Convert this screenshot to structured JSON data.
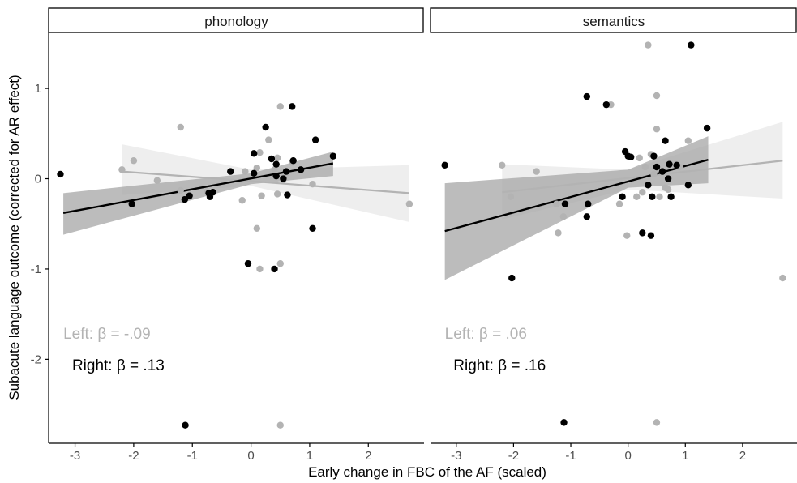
{
  "chart_data": {
    "type": "scatter",
    "xlabel": "Early change in FBC of the AF (scaled)",
    "ylabel": "Subacute language outcome (corrected for AR effect)",
    "xlim": [
      -3.45,
      2.95
    ],
    "ylim": [
      -2.93,
      1.62
    ],
    "x_ticks": [
      "-3",
      "-2",
      "-1",
      "0",
      "1",
      "2"
    ],
    "x_tick_values": [
      -3,
      -2,
      -1,
      0,
      1,
      2
    ],
    "y_ticks": [
      "-2",
      "-1",
      "0",
      "1"
    ],
    "y_tick_values": [
      -2,
      -1,
      0,
      1
    ],
    "grid": false,
    "colors": {
      "Left": "#b3b3b3",
      "Right": "#000000",
      "band_left": "#ebebeb",
      "band_right": "#a6a6a6"
    },
    "panels": [
      {
        "strip": "phonology",
        "annotations": {
          "left": "Left: β = -.09",
          "right": "Right: β = .13"
        },
        "series": [
          {
            "group": "Left",
            "fit": {
              "x": [
                -2.2,
                2.7
              ],
              "y": [
                0.08,
                -0.16
              ]
            },
            "band": {
              "x": [
                -2.2,
                0.0,
                2.7
              ],
              "lower": [
                -0.18,
                -0.08,
                -0.48
              ],
              "upper": [
                0.38,
                0.1,
                0.15
              ]
            },
            "points": [
              [
                -2.2,
                0.1
              ],
              [
                -2.0,
                0.2
              ],
              [
                -1.6,
                -0.02
              ],
              [
                -1.2,
                0.57
              ],
              [
                -1.2,
                -0.13
              ],
              [
                -1.05,
                -0.2
              ],
              [
                -0.75,
                -0.14
              ],
              [
                -0.15,
                -0.24
              ],
              [
                -0.1,
                0.08
              ],
              [
                0.1,
                -0.55
              ],
              [
                0.1,
                0.12
              ],
              [
                0.15,
                -1.0
              ],
              [
                0.15,
                0.29
              ],
              [
                0.18,
                -0.19
              ],
              [
                0.3,
                0.43
              ],
              [
                0.4,
                0.1
              ],
              [
                0.45,
                0.23
              ],
              [
                0.45,
                -0.17
              ],
              [
                0.5,
                0.8
              ],
              [
                0.5,
                -0.94
              ],
              [
                0.5,
                -2.73
              ],
              [
                0.55,
                -0.01
              ],
              [
                0.6,
                0.06
              ],
              [
                0.7,
                0.18
              ],
              [
                1.05,
                -0.06
              ],
              [
                2.7,
                -0.28
              ]
            ]
          },
          {
            "group": "Right",
            "fit": {
              "x": [
                -3.2,
                1.4
              ],
              "y": [
                -0.38,
                0.17
              ]
            },
            "band": {
              "x": [
                -3.2,
                0.0,
                1.4
              ],
              "lower": [
                -0.62,
                -0.06,
                0.03
              ],
              "upper": [
                -0.16,
                0.06,
                0.3
              ]
            },
            "points": [
              [
                -3.25,
                0.05
              ],
              [
                -2.03,
                -0.28
              ],
              [
                -1.13,
                -0.23
              ],
              [
                -1.12,
                -2.73
              ],
              [
                -1.05,
                -0.19
              ],
              [
                -0.72,
                -0.16
              ],
              [
                -0.7,
                -0.2
              ],
              [
                -0.65,
                -0.15
              ],
              [
                -0.35,
                0.08
              ],
              [
                -0.05,
                -0.94
              ],
              [
                0.05,
                0.06
              ],
              [
                0.05,
                0.28
              ],
              [
                0.25,
                0.57
              ],
              [
                0.35,
                0.22
              ],
              [
                0.4,
                -1.0
              ],
              [
                0.43,
                0.03
              ],
              [
                0.43,
                0.16
              ],
              [
                0.55,
                0.0
              ],
              [
                0.6,
                0.08
              ],
              [
                0.62,
                -0.18
              ],
              [
                0.7,
                0.8
              ],
              [
                0.72,
                0.2
              ],
              [
                0.85,
                0.1
              ],
              [
                1.05,
                -0.55
              ],
              [
                1.1,
                0.43
              ],
              [
                1.4,
                0.25
              ]
            ]
          }
        ]
      },
      {
        "strip": "semantics",
        "annotations": {
          "left": "Left: β = .06",
          "right": "Right: β = .16"
        },
        "series": [
          {
            "group": "Left",
            "fit": {
              "x": [
                -2.2,
                2.7
              ],
              "y": [
                -0.15,
                0.2
              ]
            },
            "band": {
              "x": [
                -2.2,
                0.0,
                2.7
              ],
              "lower": [
                -0.45,
                -0.12,
                -0.22
              ],
              "upper": [
                0.16,
                0.1,
                0.63
              ]
            },
            "points": [
              [
                -2.2,
                0.15
              ],
              [
                -2.05,
                -0.2
              ],
              [
                -1.6,
                0.08
              ],
              [
                -1.25,
                -0.28
              ],
              [
                -1.22,
                -0.6
              ],
              [
                -1.13,
                -0.42
              ],
              [
                -0.3,
                0.82
              ],
              [
                -0.15,
                -0.28
              ],
              [
                -0.02,
                -0.63
              ],
              [
                0.15,
                -0.2
              ],
              [
                0.2,
                0.23
              ],
              [
                0.25,
                -0.15
              ],
              [
                0.3,
                0.13
              ],
              [
                0.35,
                1.48
              ],
              [
                0.4,
                0.27
              ],
              [
                0.45,
                0.05
              ],
              [
                0.5,
                0.55
              ],
              [
                0.5,
                0.92
              ],
              [
                0.5,
                -2.7
              ],
              [
                0.55,
                -0.2
              ],
              [
                0.65,
                -0.1
              ],
              [
                0.7,
                -0.12
              ],
              [
                0.9,
                0.13
              ],
              [
                1.05,
                0.42
              ],
              [
                2.7,
                -1.1
              ]
            ]
          },
          {
            "group": "Right",
            "fit": {
              "x": [
                -3.2,
                1.4
              ],
              "y": [
                -0.58,
                0.21
              ]
            },
            "band": {
              "x": [
                -3.2,
                0.0,
                1.4
              ],
              "lower": [
                -1.12,
                -0.1,
                -0.05
              ],
              "upper": [
                -0.05,
                0.1,
                0.47
              ]
            },
            "points": [
              [
                -3.2,
                0.15
              ],
              [
                -2.03,
                -1.1
              ],
              [
                -1.12,
                -2.7
              ],
              [
                -1.1,
                -0.28
              ],
              [
                -0.72,
                -0.42
              ],
              [
                -0.7,
                -0.28
              ],
              [
                -0.72,
                0.91
              ],
              [
                -0.38,
                0.82
              ],
              [
                -0.1,
                -0.2
              ],
              [
                -0.05,
                0.3
              ],
              [
                0.0,
                0.25
              ],
              [
                0.05,
                0.24
              ],
              [
                0.25,
                -0.6
              ],
              [
                0.35,
                -0.07
              ],
              [
                0.4,
                -0.63
              ],
              [
                0.42,
                -0.2
              ],
              [
                0.45,
                0.25
              ],
              [
                0.5,
                0.13
              ],
              [
                0.6,
                0.08
              ],
              [
                0.65,
                0.42
              ],
              [
                0.7,
                0.0
              ],
              [
                0.72,
                0.16
              ],
              [
                0.75,
                -0.2
              ],
              [
                0.85,
                0.15
              ],
              [
                1.05,
                -0.07
              ],
              [
                1.1,
                1.48
              ],
              [
                1.38,
                0.56
              ]
            ]
          }
        ]
      }
    ]
  }
}
